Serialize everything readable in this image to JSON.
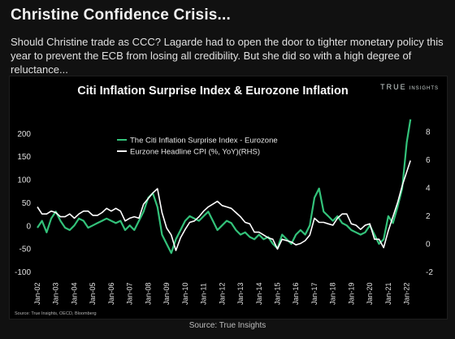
{
  "header": {
    "title": "Christine Confidence Crisis...",
    "subtitle": "Should Christine trade as CCC? Lagarde had to open the door to tighter monetary policy this year to prevent the ECB from losing all credibility. But she did so with a high degree of reluctance..."
  },
  "chart_panel": {
    "brand_main": "TRUE",
    "brand_small": "INSIGHTS",
    "footnote": "Source: True Insights, OECD, Bloomberg"
  },
  "source_caption": "Source: True Insights",
  "colors": {
    "citi": "#33c27a",
    "cpi": "#ffffff",
    "background": "#000000"
  },
  "chart_data": {
    "type": "line",
    "title": "Citi Inflation Surprise Index & Eurozone Inflation",
    "x": [
      2002,
      2002.25,
      2002.5,
      2002.75,
      2003,
      2003.25,
      2003.5,
      2003.75,
      2004,
      2004.25,
      2004.5,
      2004.75,
      2005,
      2005.25,
      2005.5,
      2005.75,
      2006,
      2006.25,
      2006.5,
      2006.75,
      2007,
      2007.25,
      2007.5,
      2007.75,
      2008,
      2008.25,
      2008.5,
      2008.75,
      2009,
      2009.25,
      2009.5,
      2009.75,
      2010,
      2010.25,
      2010.5,
      2010.75,
      2011,
      2011.25,
      2011.5,
      2011.75,
      2012,
      2012.25,
      2012.5,
      2012.75,
      2013,
      2013.25,
      2013.5,
      2013.75,
      2014,
      2014.25,
      2014.5,
      2014.75,
      2015,
      2015.25,
      2015.5,
      2015.75,
      2016,
      2016.25,
      2016.5,
      2016.75,
      2017,
      2017.25,
      2017.5,
      2017.75,
      2018,
      2018.25,
      2018.5,
      2018.75,
      2019,
      2019.25,
      2019.5,
      2019.75,
      2020,
      2020.25,
      2020.5,
      2020.75,
      2021,
      2021.25,
      2021.5,
      2021.75,
      2022,
      2022.2
    ],
    "xlabels": [
      "Jan-02",
      "Jan-03",
      "Jan-04",
      "Jan-05",
      "Jan-06",
      "Jan-07",
      "Jan-08",
      "Jan-09",
      "Jan-10",
      "Jan-11",
      "Jan-12",
      "Jan-13",
      "Jan-14",
      "Jan-15",
      "Jan-16",
      "Jan-17",
      "Jan-18",
      "Jan-19",
      "Jan-20",
      "Jan-21",
      "Jan-22"
    ],
    "xtick_values": [
      2002,
      2003,
      2004,
      2005,
      2006,
      2007,
      2008,
      2009,
      2010,
      2011,
      2012,
      2013,
      2014,
      2015,
      2016,
      2017,
      2018,
      2019,
      2020,
      2021,
      2022
    ],
    "yticks_left": [
      "200",
      "150",
      "100",
      "50",
      "0",
      "-50",
      "-100"
    ],
    "yticks_left_values": [
      200,
      150,
      100,
      50,
      0,
      -50,
      -100
    ],
    "yticks_right": [
      "8",
      "6",
      "4",
      "2",
      "0",
      "-2"
    ],
    "yticks_right_values": [
      8,
      6,
      4,
      2,
      0,
      -2
    ],
    "ylim_left": [
      -100,
      235
    ],
    "ylim_right": [
      -2,
      9
    ],
    "grid": false,
    "legend_position": "top-left",
    "series": [
      {
        "name": "The Citi Inflation Surprise Index - Eurozone",
        "axis": "left",
        "color": "#33c27a",
        "values": [
          -5,
          10,
          -15,
          15,
          30,
          10,
          -5,
          -10,
          0,
          15,
          10,
          -5,
          0,
          5,
          10,
          15,
          10,
          5,
          10,
          -10,
          0,
          -10,
          10,
          30,
          60,
          70,
          40,
          -20,
          -40,
          -60,
          -30,
          -10,
          10,
          20,
          15,
          10,
          20,
          30,
          10,
          -10,
          0,
          10,
          5,
          -10,
          -20,
          -15,
          -25,
          -30,
          -20,
          -30,
          -25,
          -40,
          -50,
          -20,
          -30,
          -40,
          -20,
          -10,
          -20,
          0,
          60,
          80,
          30,
          20,
          10,
          20,
          5,
          0,
          -10,
          -15,
          -20,
          -15,
          0,
          -20,
          -40,
          -30,
          20,
          5,
          40,
          80,
          180,
          230
        ]
      },
      {
        "name": "Eurzone Headline CPI (%, YoY)(RHS)",
        "axis": "right",
        "color": "#ffffff",
        "values": [
          2.6,
          2.1,
          2.1,
          2.3,
          2.2,
          1.9,
          1.9,
          2.1,
          1.8,
          2.1,
          2.3,
          2.3,
          2.0,
          2.0,
          2.2,
          2.5,
          2.3,
          2.5,
          2.3,
          1.6,
          1.8,
          1.9,
          1.8,
          2.8,
          3.2,
          3.6,
          3.9,
          2.2,
          1.1,
          0.6,
          -0.5,
          0.4,
          1.0,
          1.5,
          1.6,
          1.9,
          2.3,
          2.6,
          2.8,
          3.0,
          2.7,
          2.6,
          2.5,
          2.2,
          1.9,
          1.5,
          1.4,
          0.8,
          0.8,
          0.6,
          0.4,
          0.3,
          -0.4,
          0.3,
          0.2,
          0.1,
          -0.1,
          0.0,
          0.2,
          0.6,
          1.8,
          1.5,
          1.5,
          1.4,
          1.3,
          1.8,
          2.1,
          2.1,
          1.4,
          1.3,
          1.0,
          1.3,
          1.4,
          0.3,
          0.3,
          -0.3,
          0.9,
          1.9,
          2.9,
          4.1,
          5.1,
          5.9
        ]
      }
    ]
  }
}
